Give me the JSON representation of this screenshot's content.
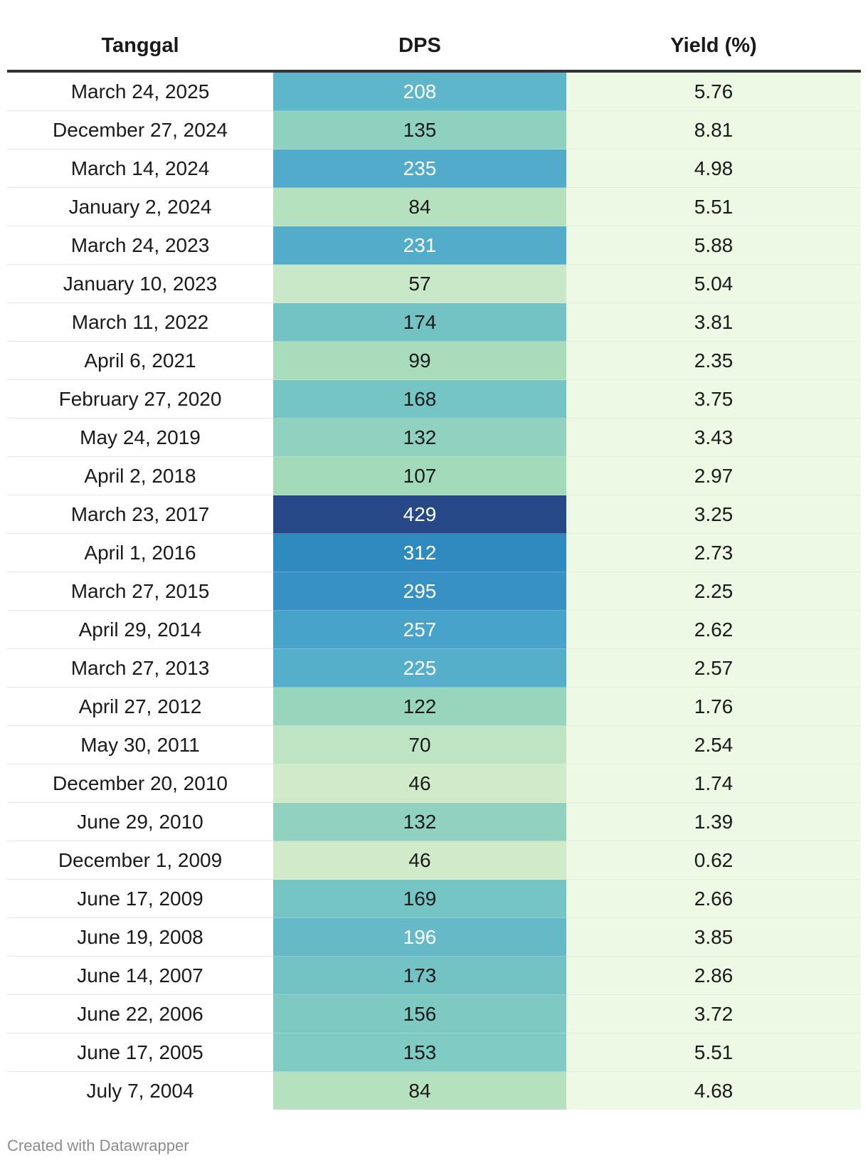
{
  "chart_data": {
    "type": "table",
    "columns": [
      "Tanggal",
      "DPS",
      "Yield (%)"
    ],
    "rows": [
      {
        "date": "March 24, 2025",
        "dps": 208,
        "yield": 5.76
      },
      {
        "date": "December 27, 2024",
        "dps": 135,
        "yield": 8.81
      },
      {
        "date": "March 14, 2024",
        "dps": 235,
        "yield": 4.98
      },
      {
        "date": "January 2, 2024",
        "dps": 84,
        "yield": 5.51
      },
      {
        "date": "March 24, 2023",
        "dps": 231,
        "yield": 5.88
      },
      {
        "date": "January 10, 2023",
        "dps": 57,
        "yield": 5.04
      },
      {
        "date": "March 11, 2022",
        "dps": 174,
        "yield": 3.81
      },
      {
        "date": "April 6, 2021",
        "dps": 99,
        "yield": 2.35
      },
      {
        "date": "February 27, 2020",
        "dps": 168,
        "yield": 3.75
      },
      {
        "date": "May 24, 2019",
        "dps": 132,
        "yield": 3.43
      },
      {
        "date": "April 2, 2018",
        "dps": 107,
        "yield": 2.97
      },
      {
        "date": "March 23, 2017",
        "dps": 429,
        "yield": 3.25
      },
      {
        "date": "April 1, 2016",
        "dps": 312,
        "yield": 2.73
      },
      {
        "date": "March 27, 2015",
        "dps": 295,
        "yield": 2.25
      },
      {
        "date": "April 29, 2014",
        "dps": 257,
        "yield": 2.62
      },
      {
        "date": "March 27, 2013",
        "dps": 225,
        "yield": 2.57
      },
      {
        "date": "April 27, 2012",
        "dps": 122,
        "yield": 1.76
      },
      {
        "date": "May 30, 2011",
        "dps": 70,
        "yield": 2.54
      },
      {
        "date": "December 20, 2010",
        "dps": 46,
        "yield": 1.74
      },
      {
        "date": "June 29, 2010",
        "dps": 132,
        "yield": 1.39
      },
      {
        "date": "December 1, 2009",
        "dps": 46,
        "yield": 0.62
      },
      {
        "date": "June 17, 2009",
        "dps": 169,
        "yield": 2.66
      },
      {
        "date": "June 19, 2008",
        "dps": 196,
        "yield": 3.85
      },
      {
        "date": "June 14, 2007",
        "dps": 173,
        "yield": 2.86
      },
      {
        "date": "June 22, 2006",
        "dps": 156,
        "yield": 3.72
      },
      {
        "date": "June 17, 2005",
        "dps": 153,
        "yield": 5.51
      },
      {
        "date": "July 7, 2004",
        "dps": 84,
        "yield": 4.68
      }
    ],
    "dps_color_scale": [
      "#d1ebca",
      "#a8dcb9",
      "#7ecac3",
      "#5db5ca",
      "#44a0ca",
      "#2c87be",
      "#1f75b6",
      "#264887"
    ],
    "dps_color_domain": [
      46,
      429
    ],
    "yield_cell_color": "#edf8e5"
  },
  "footer": {
    "credit": "Created with Datawrapper"
  }
}
